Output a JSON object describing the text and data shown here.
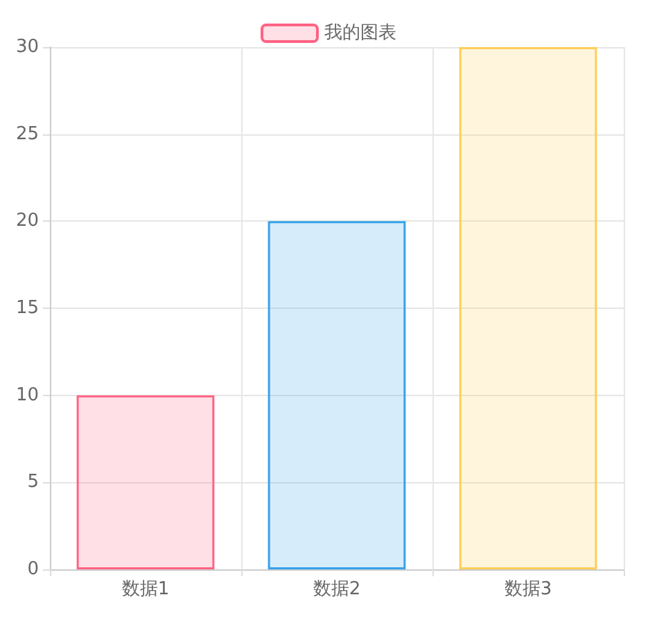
{
  "chart_data": {
    "type": "bar",
    "categories": [
      "数据1",
      "数据2",
      "数据3"
    ],
    "series": [
      {
        "name": "我的图表",
        "values": [
          10,
          20,
          30
        ],
        "colors": [
          "#ff6384",
          "#36a2eb",
          "#ffce56"
        ]
      }
    ],
    "ylim": [
      0,
      30
    ],
    "yticks": [
      0,
      5,
      10,
      15,
      20,
      25,
      30
    ],
    "grid": true,
    "legend": "top"
  }
}
